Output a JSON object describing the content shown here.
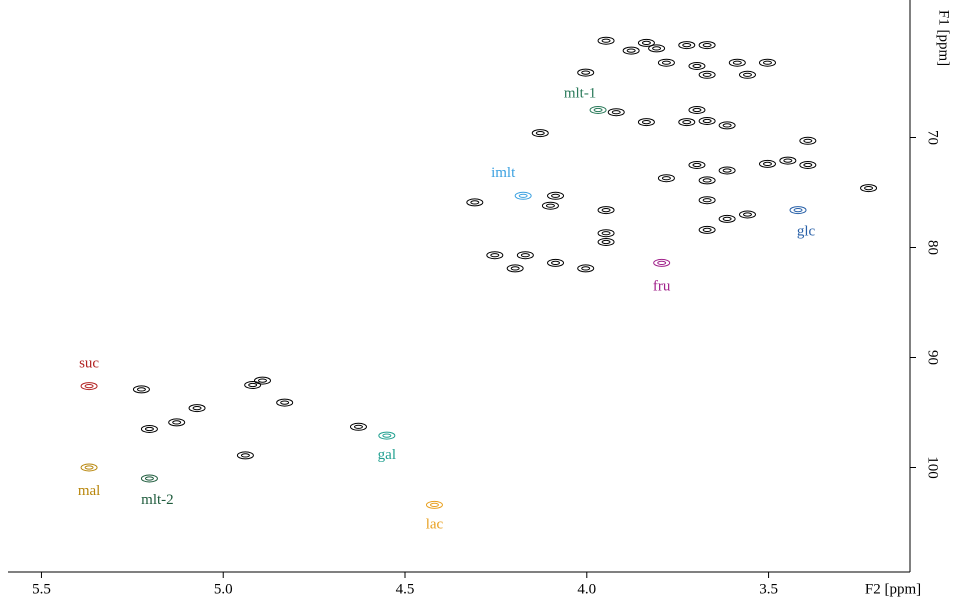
{
  "chart_data": {
    "type": "scatter",
    "xlabel": "F2 [ppm]",
    "ylabel": "F1 [ppm]",
    "xlim": [
      5.592,
      3.111
    ],
    "ylim": [
      57.5,
      109.5
    ],
    "xticks": [
      5.5,
      {
        "value": 5,
        "label": "5.0"
      },
      4.5,
      {
        "value": 4,
        "label": "4.0"
      },
      3.5
    ],
    "yticks": [
      70,
      80,
      90,
      100
    ],
    "series": [
      {
        "color": "#000000",
        "x": [
          3.836,
          3.725,
          3.947,
          3.669,
          3.878,
          3.808,
          3.586,
          3.503,
          3.781,
          3.697,
          3.669,
          3.558,
          4.003,
          3.697,
          3.669,
          3.919,
          3.836,
          3.725,
          3.614,
          4.128,
          3.392,
          3.447,
          3.503,
          3.697,
          3.614,
          3.781,
          3.669,
          3.392,
          3.225,
          4.086,
          4.1,
          4.308,
          3.947,
          3.669,
          3.614,
          3.558,
          3.947,
          3.947,
          4.253,
          4.169,
          4.197,
          4.086,
          4.003,
          3.669,
          4.919,
          4.892,
          5.072,
          4.831,
          5.203,
          5.128,
          4.939,
          4.628,
          5.225
        ],
        "y": [
          61.4,
          61.6,
          61.2,
          61.6,
          62.1,
          61.9,
          63.2,
          63.2,
          63.2,
          63.5,
          64.3,
          64.3,
          64.1,
          67.5,
          68.5,
          67.7,
          68.6,
          68.6,
          68.9,
          69.6,
          70.3,
          72.1,
          72.4,
          72.5,
          73.0,
          73.7,
          73.9,
          72.5,
          74.6,
          75.3,
          76.2,
          75.9,
          76.6,
          75.7,
          77.4,
          77.0,
          78.7,
          79.5,
          80.7,
          80.7,
          81.9,
          81.4,
          81.9,
          78.4,
          92.5,
          92.1,
          94.6,
          94.1,
          96.5,
          95.9,
          98.9,
          96.3,
          92.9
        ]
      },
      {
        "name": "suc",
        "color": "#b22222",
        "x": [
          5.369
        ],
        "y": [
          92.6
        ]
      },
      {
        "name": "mal",
        "color": "#b8860b",
        "x": [
          5.369
        ],
        "y": [
          100
        ]
      },
      {
        "name": "mlt-2",
        "color": "#1e5b3c",
        "x": [
          5.203
        ],
        "y": [
          101
        ]
      },
      {
        "name": "gal",
        "color": "#20a090",
        "x": [
          4.55
        ],
        "y": [
          97.1
        ]
      },
      {
        "name": "lac",
        "color": "#e8a020",
        "x": [
          4.419
        ],
        "y": [
          103.4
        ]
      },
      {
        "name": "fru",
        "color": "#a0208a",
        "x": [
          3.794
        ],
        "y": [
          81.4
        ]
      },
      {
        "name": "glc",
        "color": "#2860a8",
        "x": [
          3.419
        ],
        "y": [
          76.6
        ]
      },
      {
        "name": "imlt",
        "color": "#3aa0e0",
        "x": [
          4.175
        ],
        "y": [
          75.3
        ]
      },
      {
        "name": "mlt-1",
        "color": "#2a7a5a",
        "x": [
          3.969
        ],
        "y": [
          67.5
        ]
      }
    ]
  }
}
